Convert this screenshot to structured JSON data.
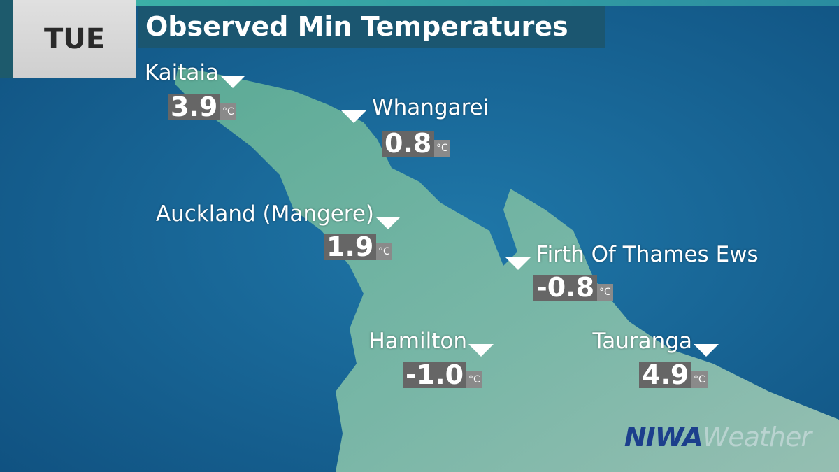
{
  "header": {
    "day": "TUE",
    "title": "Observed Min Temperatures"
  },
  "unit": "°C",
  "stations": [
    {
      "name": "Kaitaia",
      "value": "3.9"
    },
    {
      "name": "Whangarei",
      "value": "0.8"
    },
    {
      "name": "Auckland (Mangere)",
      "value": "1.9"
    },
    {
      "name": "Firth Of Thames Ews",
      "value": "-0.8"
    },
    {
      "name": "Hamilton",
      "value": "-1.0"
    },
    {
      "name": "Tauranga",
      "value": "4.9"
    }
  ],
  "logo": {
    "part1": "NIWA",
    "part2": "Weather"
  }
}
